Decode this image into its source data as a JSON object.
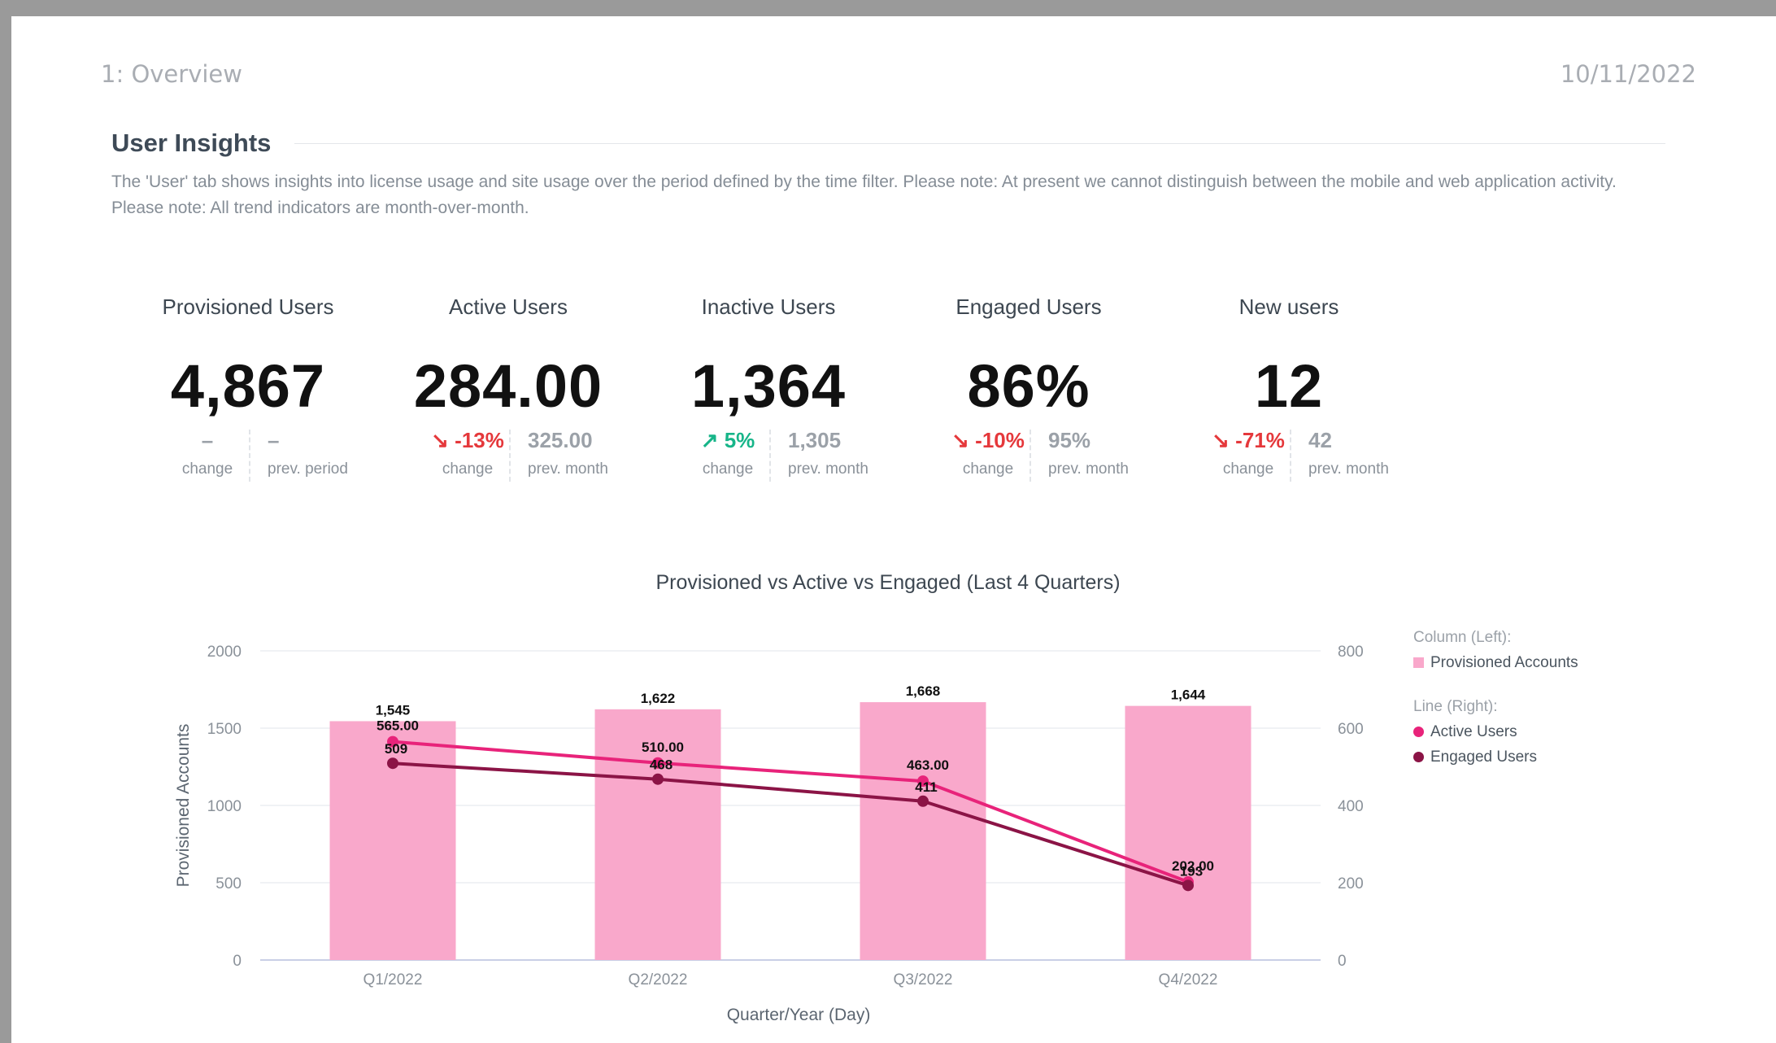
{
  "page": {
    "tab_title": "1: Overview",
    "date": "10/11/2022"
  },
  "section": {
    "title": "User Insights",
    "description": "The 'User' tab shows insights into license usage and site usage over the period defined by the time filter. Please note: At present we cannot distinguish between the mobile and web application activity. Please note: All trend indicators are month-over-month."
  },
  "kpis": [
    {
      "label": "Provisioned Users",
      "value": "4,867",
      "change": "–",
      "change_label": "change",
      "prev": "–",
      "prev_label": "prev. period",
      "trend": "neutral",
      "arrow": ""
    },
    {
      "label": "Active Users",
      "value": "284.00",
      "change": "-13%",
      "change_label": "change",
      "prev": "325.00",
      "prev_label": "prev. month",
      "trend": "down",
      "arrow": "↘"
    },
    {
      "label": "Inactive Users",
      "value": "1,364",
      "change": "5%",
      "change_label": "change",
      "prev": "1,305",
      "prev_label": "prev. month",
      "trend": "up",
      "arrow": "↗"
    },
    {
      "label": "Engaged Users",
      "value": "86%",
      "change": "-10%",
      "change_label": "change",
      "prev": "95%",
      "prev_label": "prev. month",
      "trend": "down",
      "arrow": "↘"
    },
    {
      "label": "New users",
      "value": "12",
      "change": "-71%",
      "change_label": "change",
      "prev": "42",
      "prev_label": "prev. month",
      "trend": "down",
      "arrow": "↘"
    }
  ],
  "colors": {
    "bar": "#f9a8cb",
    "active": "#e8237a",
    "engaged": "#8b1446",
    "down": "#e5383b",
    "up": "#17b589"
  },
  "chart_data": {
    "type": "bar",
    "title": "Provisioned vs Active vs Engaged (Last 4 Quarters)",
    "xlabel": "Quarter/Year (Day)",
    "ylabel": "Provisioned Accounts",
    "categories": [
      "Q1/2022",
      "Q2/2022",
      "Q3/2022",
      "Q4/2022"
    ],
    "ylim": [
      0,
      2000
    ],
    "yticks": [
      0,
      500,
      1000,
      1500,
      2000
    ],
    "y2lim": [
      0,
      800
    ],
    "y2ticks": [
      0,
      200,
      400,
      600,
      800
    ],
    "grid": true,
    "legend_position": "right",
    "series": [
      {
        "name": "Provisioned Accounts",
        "type": "bar",
        "axis": "left",
        "values": [
          1545,
          1622,
          1668,
          1644
        ],
        "labels": [
          "1,545",
          "1,622",
          "1,668",
          "1,644"
        ]
      },
      {
        "name": "Active Users",
        "type": "line",
        "axis": "right",
        "values": [
          565,
          510,
          463,
          202
        ],
        "labels": [
          "565.00",
          "510.00",
          "463.00",
          "202.00"
        ]
      },
      {
        "name": "Engaged Users",
        "type": "line",
        "axis": "right",
        "values": [
          509,
          468,
          411,
          193
        ],
        "labels": [
          "509",
          "468",
          "411",
          "193"
        ]
      }
    ],
    "legend": {
      "column_heading": "Column (Left):",
      "line_heading": "Line (Right):"
    }
  }
}
